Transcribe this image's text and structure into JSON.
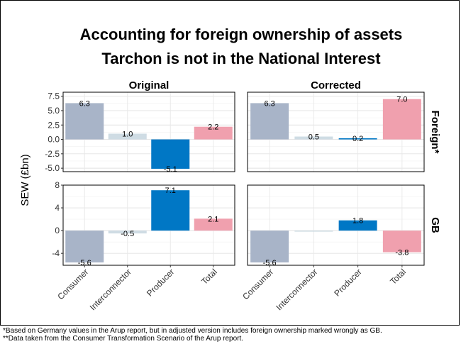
{
  "title_line1": "Accounting for foreign ownership of assets",
  "title_line2": "Tarchon is not in the National Interest",
  "footnote1": "*Based on Germany values in the Arup report, but in adjusted version includes foreign ownership marked wrongly as GB.",
  "footnote2": "**Data taken from the Consumer Transformation Scenario of the Arup report.",
  "colors": {
    "Consumer": "#a8b4c8",
    "Interconnector": "#cfdce4",
    "Producer": "#0077c5",
    "Total": "#f0a0ae"
  },
  "chart_data": {
    "type": "bar",
    "categories": [
      "Consumer",
      "Interconnector",
      "Producer",
      "Total"
    ],
    "ylabel": "SEW (£bn)",
    "xlabel": "",
    "columns": [
      "Original",
      "Corrected"
    ],
    "rows": [
      "Foreign*",
      "GB"
    ],
    "panels": [
      {
        "column": "Original",
        "row": "Foreign*",
        "values": [
          6.3,
          1.0,
          -5.1,
          2.2
        ]
      },
      {
        "column": "Corrected",
        "row": "Foreign*",
        "values": [
          6.3,
          0.5,
          0.2,
          7.0
        ]
      },
      {
        "column": "Original",
        "row": "GB",
        "values": [
          -5.6,
          -0.5,
          7.1,
          2.1
        ]
      },
      {
        "column": "Corrected",
        "row": "GB",
        "values": [
          -5.6,
          0.0,
          1.8,
          -3.8
        ]
      }
    ],
    "row_axes": {
      "Foreign*": {
        "ylim": [
          -5.6,
          8.2
        ],
        "ticks": [
          -5.0,
          -2.5,
          0.0,
          2.5,
          5.0,
          7.5
        ],
        "tick_labels": [
          "-5.0",
          "-2.5",
          "0.0",
          "2.5",
          "5.0",
          "7.5"
        ]
      },
      "GB": {
        "ylim": [
          -6.1,
          8.0
        ],
        "ticks": [
          -4,
          0,
          4,
          8
        ],
        "tick_labels": [
          "-4",
          "0",
          "4",
          "8"
        ]
      }
    },
    "grid": true,
    "legend": "none"
  }
}
